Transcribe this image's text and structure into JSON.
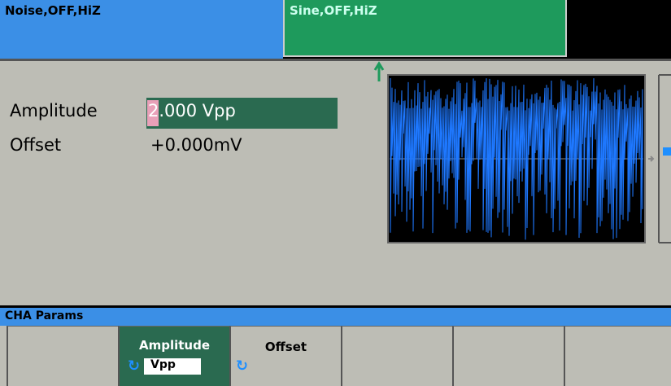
{
  "tabs": [
    {
      "label": "Noise,OFF,HiZ"
    },
    {
      "label": "Sine,OFF,HiZ"
    }
  ],
  "params": [
    {
      "label": "Amplitude",
      "value": "2.000 Vpp"
    },
    {
      "label": "Offset",
      "value": "+0.000mV"
    }
  ],
  "menu": {
    "title": "CHA Params"
  },
  "softkeys": [
    {
      "label": "Amplitude",
      "unit": "Vpp"
    },
    {
      "label": "Offset"
    }
  ]
}
